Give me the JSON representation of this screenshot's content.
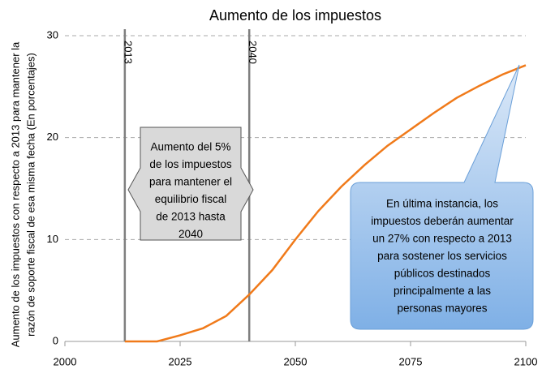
{
  "chart_data": {
    "type": "line",
    "title": "Aumento de los impuestos",
    "ylabel": [
      "Aumento de los impuestos con respecto a 2013 para mantener la",
      "razón de soporte fiscal de esa misma fecha (En porcentajes)"
    ],
    "x": [
      2013,
      2020,
      2025,
      2030,
      2035,
      2040,
      2045,
      2050,
      2055,
      2060,
      2065,
      2070,
      2075,
      2080,
      2085,
      2090,
      2095,
      2100
    ],
    "values": [
      0,
      0,
      0.6,
      1.3,
      2.5,
      4.6,
      7,
      10,
      12.8,
      15.2,
      17.3,
      19.2,
      20.8,
      22.4,
      23.9,
      25.1,
      26.2,
      27.1
    ],
    "color": "#f07a1a",
    "xlim": [
      2000,
      2100
    ],
    "xticks": [
      2000,
      2025,
      2050,
      2075,
      2100
    ],
    "ylim": [
      0,
      30
    ],
    "yticks": [
      0,
      10,
      20,
      30
    ],
    "grid": true,
    "vlines": [
      {
        "x": 2013,
        "label": "2013"
      },
      {
        "x": 2040,
        "label": "2040"
      }
    ],
    "annotations": [
      {
        "lines": [
          "Aumento del 5%",
          "de los impuestos",
          "para mantener el",
          "equilibrio fiscal",
          "de 2013 hasta",
          "2040"
        ]
      },
      {
        "lines": [
          "En última instancia, los",
          "impuestos deberán aumentar",
          "un 27% con respecto a 2013",
          "para sostener los servicios",
          "públicos destinados",
          "principalmente a las",
          "personas mayores"
        ]
      }
    ]
  }
}
